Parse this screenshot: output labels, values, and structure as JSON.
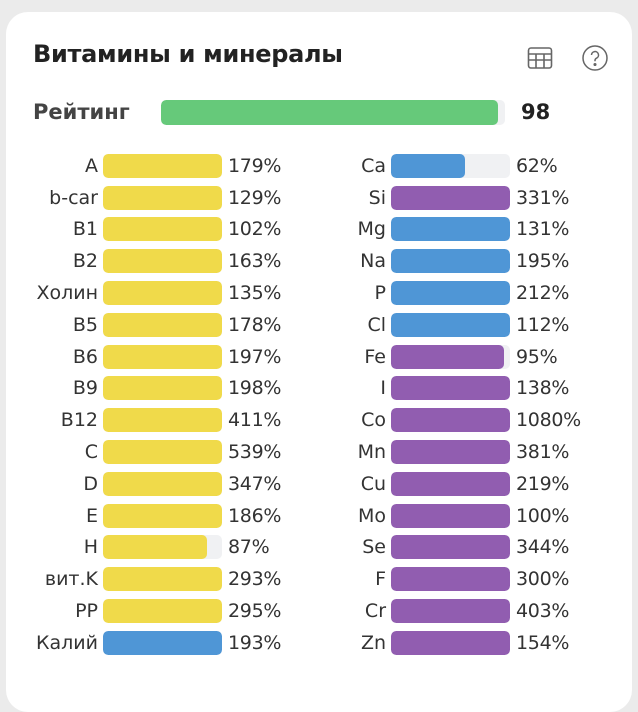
{
  "title": "Витамины и минералы",
  "icons": {
    "table": "table-icon",
    "help": "help-icon"
  },
  "colors": {
    "vitamin": "#f0da4a",
    "mineral_blue": "#4f96d6",
    "mineral_purple": "#915db0",
    "rating": "#66c97a",
    "track": "#f0f1f3"
  },
  "rating": {
    "label": "Рейтинг",
    "value": "98",
    "percent": 98
  },
  "left": [
    {
      "name": "A",
      "pct": "179%",
      "v": 179,
      "c": "vitamin"
    },
    {
      "name": "b-car",
      "pct": "129%",
      "v": 129,
      "c": "vitamin"
    },
    {
      "name": "B1",
      "pct": "102%",
      "v": 102,
      "c": "vitamin"
    },
    {
      "name": "B2",
      "pct": "163%",
      "v": 163,
      "c": "vitamin"
    },
    {
      "name": "Холин",
      "pct": "135%",
      "v": 135,
      "c": "vitamin"
    },
    {
      "name": "B5",
      "pct": "178%",
      "v": 178,
      "c": "vitamin"
    },
    {
      "name": "B6",
      "pct": "197%",
      "v": 197,
      "c": "vitamin"
    },
    {
      "name": "B9",
      "pct": "198%",
      "v": 198,
      "c": "vitamin"
    },
    {
      "name": "B12",
      "pct": "411%",
      "v": 411,
      "c": "vitamin"
    },
    {
      "name": "C",
      "pct": "539%",
      "v": 539,
      "c": "vitamin"
    },
    {
      "name": "D",
      "pct": "347%",
      "v": 347,
      "c": "vitamin"
    },
    {
      "name": "E",
      "pct": "186%",
      "v": 186,
      "c": "vitamin"
    },
    {
      "name": "H",
      "pct": "87%",
      "v": 87,
      "c": "vitamin"
    },
    {
      "name": "вит.K",
      "pct": "293%",
      "v": 293,
      "c": "vitamin"
    },
    {
      "name": "PP",
      "pct": "295%",
      "v": 295,
      "c": "vitamin"
    },
    {
      "name": "Калий",
      "pct": "193%",
      "v": 193,
      "c": "mineral_blue"
    }
  ],
  "right": [
    {
      "name": "Ca",
      "pct": "62%",
      "v": 62,
      "c": "mineral_blue"
    },
    {
      "name": "Si",
      "pct": "331%",
      "v": 331,
      "c": "mineral_purple"
    },
    {
      "name": "Mg",
      "pct": "131%",
      "v": 131,
      "c": "mineral_blue"
    },
    {
      "name": "Na",
      "pct": "195%",
      "v": 195,
      "c": "mineral_blue"
    },
    {
      "name": "P",
      "pct": "212%",
      "v": 212,
      "c": "mineral_blue"
    },
    {
      "name": "Cl",
      "pct": "112%",
      "v": 112,
      "c": "mineral_blue"
    },
    {
      "name": "Fe",
      "pct": "95%",
      "v": 95,
      "c": "mineral_purple"
    },
    {
      "name": "I",
      "pct": "138%",
      "v": 138,
      "c": "mineral_purple"
    },
    {
      "name": "Co",
      "pct": "1080%",
      "v": 1080,
      "c": "mineral_purple"
    },
    {
      "name": "Mn",
      "pct": "381%",
      "v": 381,
      "c": "mineral_purple"
    },
    {
      "name": "Cu",
      "pct": "219%",
      "v": 219,
      "c": "mineral_purple"
    },
    {
      "name": "Mo",
      "pct": "100%",
      "v": 100,
      "c": "mineral_purple"
    },
    {
      "name": "Se",
      "pct": "344%",
      "v": 344,
      "c": "mineral_purple"
    },
    {
      "name": "F",
      "pct": "300%",
      "v": 300,
      "c": "mineral_purple"
    },
    {
      "name": "Cr",
      "pct": "403%",
      "v": 403,
      "c": "mineral_purple"
    },
    {
      "name": "Zn",
      "pct": "154%",
      "v": 154,
      "c": "mineral_purple"
    }
  ]
}
